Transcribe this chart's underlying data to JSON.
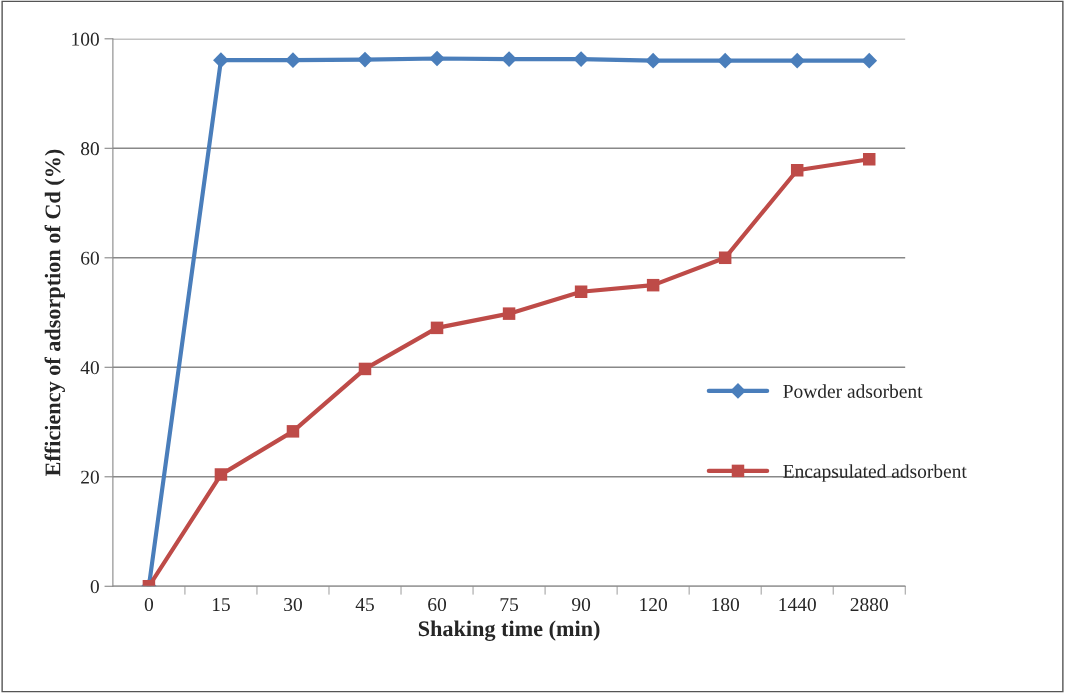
{
  "chart_data": {
    "type": "line",
    "xlabel": "Shaking time (min)",
    "ylabel": "Efficiency of adsorption of Cd (%)",
    "categories": [
      "0",
      "15",
      "30",
      "45",
      "60",
      "75",
      "90",
      "120",
      "180",
      "1440",
      "2880"
    ],
    "series": [
      {
        "name": "Powder adsorbent",
        "color": "#4a7ebb",
        "marker": "diamond",
        "values": [
          0,
          96.1,
          96.1,
          96.2,
          96.4,
          96.3,
          96.3,
          96.0,
          96.0,
          96.0,
          96.0
        ]
      },
      {
        "name": "Encapsulated adsorbent",
        "color": "#be4b48",
        "marker": "square",
        "values": [
          0,
          20.4,
          28.3,
          39.7,
          47.2,
          49.8,
          53.8,
          55.0,
          60.0,
          76.0,
          78.0
        ]
      }
    ],
    "ylim": [
      0,
      100
    ],
    "yticks": [
      0,
      20,
      40,
      60,
      80,
      100
    ],
    "grid": "y",
    "legend": "right"
  }
}
